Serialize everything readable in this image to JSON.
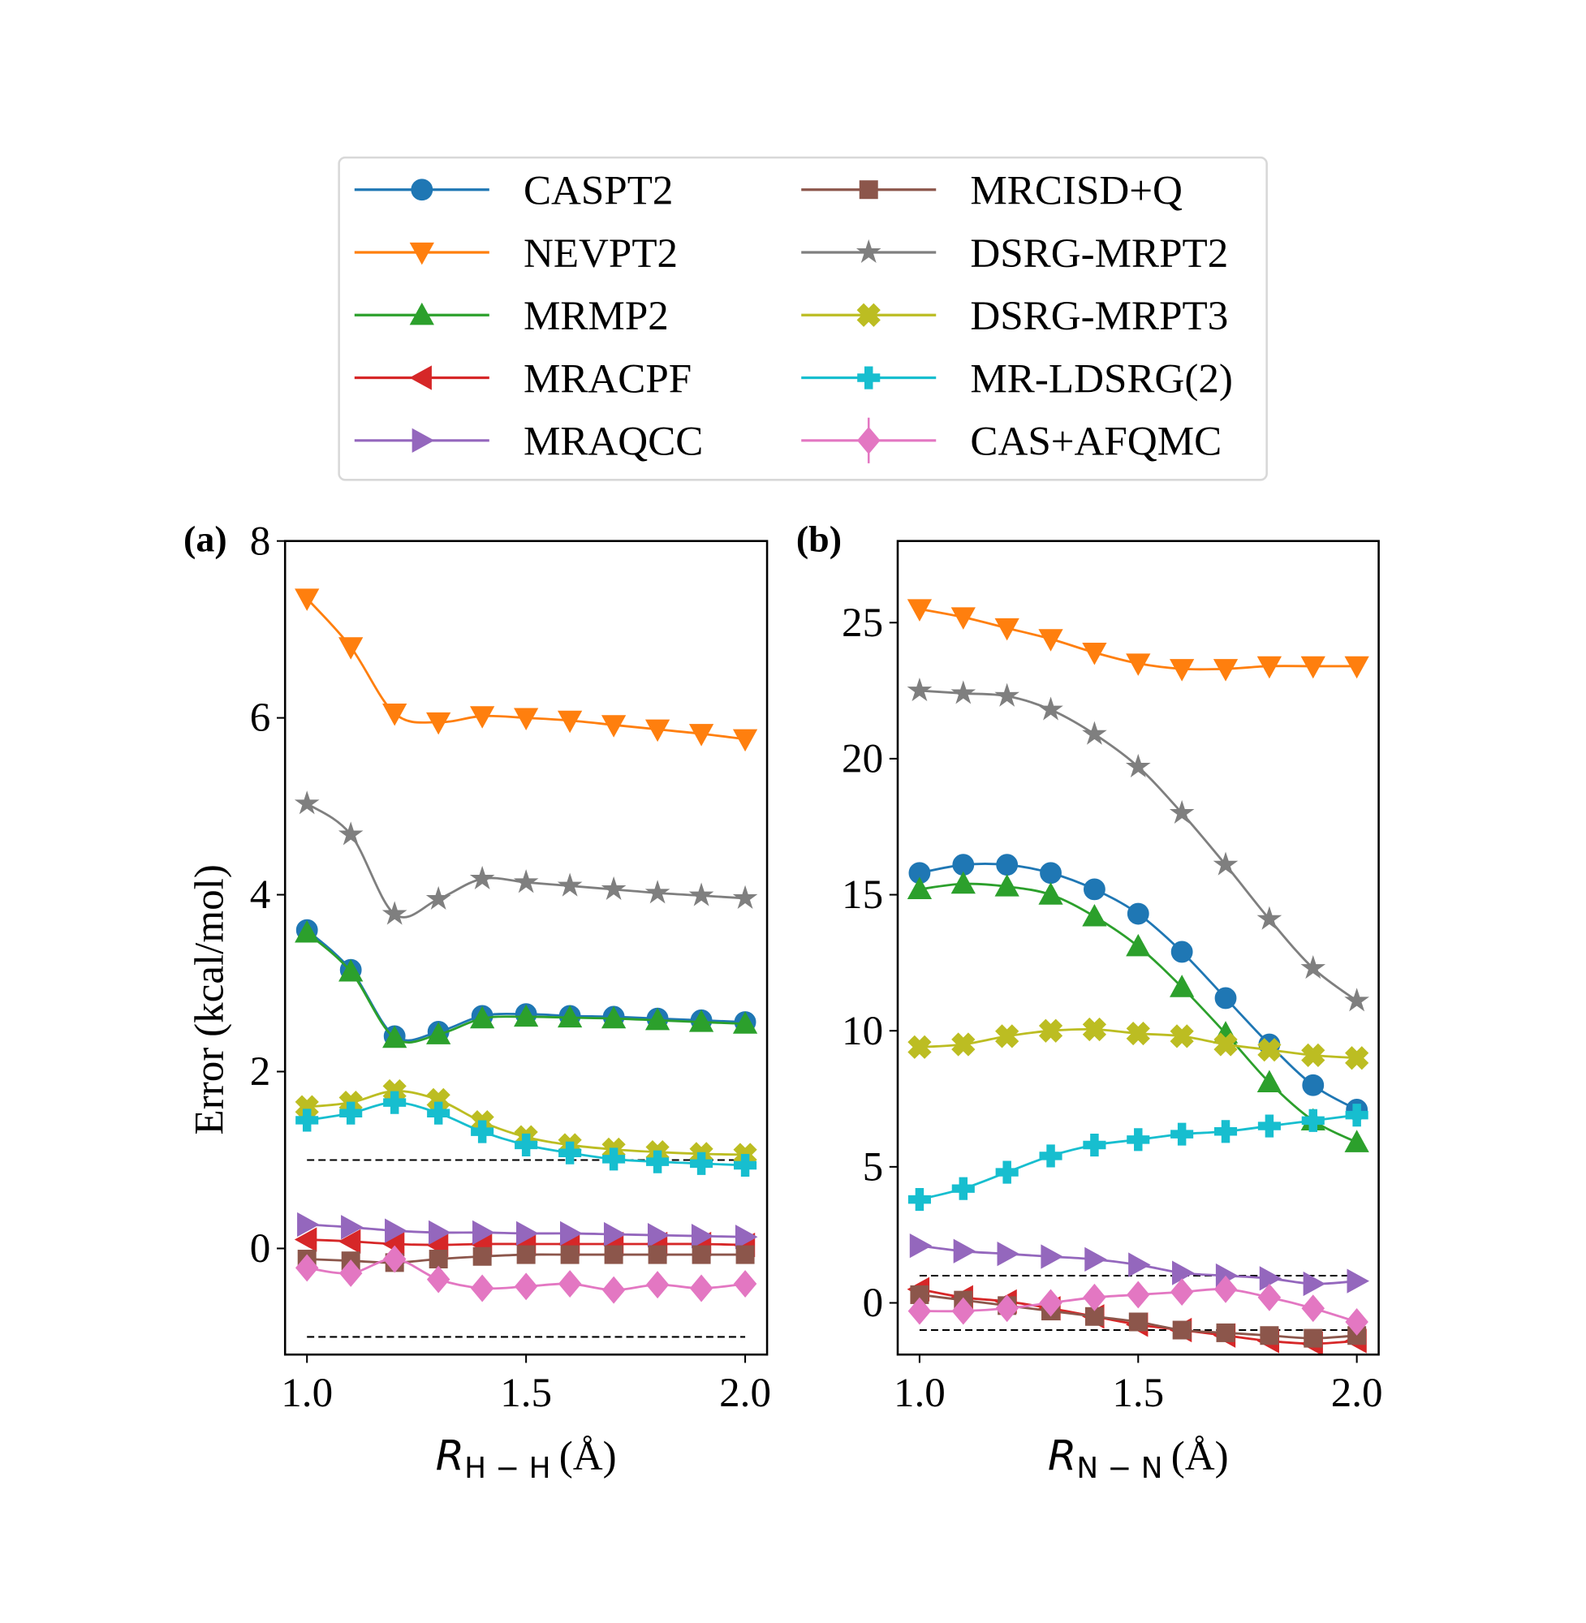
{
  "legend": {
    "location": "top-center",
    "entries": [
      {
        "name": "CASPT2",
        "color": "#1f77b4",
        "marker": "circle"
      },
      {
        "name": "NEVPT2",
        "color": "#ff7f0e",
        "marker": "triangle-down"
      },
      {
        "name": "MRMP2",
        "color": "#2ca02c",
        "marker": "triangle-up"
      },
      {
        "name": "MRACPF",
        "color": "#d62728",
        "marker": "triangle-left"
      },
      {
        "name": "MRAQCC",
        "color": "#9467bd",
        "marker": "triangle-right"
      },
      {
        "name": "MRCISD+Q",
        "color": "#8c564b",
        "marker": "square"
      },
      {
        "name": "DSRG-MRPT2",
        "color": "#7f7f7f",
        "marker": "star"
      },
      {
        "name": "DSRG-MRPT3",
        "color": "#bcbd22",
        "marker": "x-filled"
      },
      {
        "name": "MR-LDSRG(2)",
        "color": "#17becf",
        "marker": "plus-filled"
      },
      {
        "name": "CAS+AFQMC",
        "color": "#e377c2",
        "marker": "diamond-errorbar"
      }
    ]
  },
  "chart_data": [
    {
      "type": "line",
      "panel_label": "(a)",
      "xlabel_main": "R",
      "xlabel_sub": "H − H",
      "xlabel_unit": "(Å)",
      "ylabel": "Error (kcal/mol)",
      "xlim": [
        0.95,
        2.05
      ],
      "ylim": [
        -1.2,
        8
      ],
      "xticks": [
        "1.0",
        "1.5",
        "2.0"
      ],
      "xtick_values": [
        1.0,
        1.5,
        2.0
      ],
      "yticks": [
        "0",
        "2",
        "4",
        "6",
        "8"
      ],
      "ytick_values": [
        0,
        2,
        4,
        6,
        8
      ],
      "reference_lines": [
        1,
        -1
      ],
      "x": [
        1.0,
        1.1,
        1.2,
        1.3,
        1.4,
        1.5,
        1.6,
        1.7,
        1.8,
        1.9,
        2.0
      ],
      "series": [
        {
          "name": "CASPT2",
          "values": [
            3.6,
            3.15,
            2.4,
            2.45,
            2.63,
            2.65,
            2.63,
            2.62,
            2.6,
            2.58,
            2.56
          ]
        },
        {
          "name": "NEVPT2",
          "values": [
            7.35,
            6.8,
            6.05,
            5.95,
            6.02,
            6.0,
            5.97,
            5.92,
            5.87,
            5.82,
            5.76
          ]
        },
        {
          "name": "MRMP2",
          "values": [
            3.57,
            3.13,
            2.38,
            2.42,
            2.6,
            2.62,
            2.61,
            2.6,
            2.58,
            2.56,
            2.54
          ]
        },
        {
          "name": "MRACPF",
          "values": [
            0.1,
            0.08,
            0.05,
            0.04,
            0.05,
            0.05,
            0.05,
            0.05,
            0.05,
            0.05,
            0.04
          ]
        },
        {
          "name": "MRAQCC",
          "values": [
            0.27,
            0.24,
            0.2,
            0.18,
            0.18,
            0.17,
            0.17,
            0.16,
            0.15,
            0.14,
            0.13
          ]
        },
        {
          "name": "MRCISD+Q",
          "values": [
            -0.12,
            -0.14,
            -0.16,
            -0.12,
            -0.09,
            -0.07,
            -0.07,
            -0.07,
            -0.07,
            -0.07,
            -0.07
          ]
        },
        {
          "name": "DSRG-MRPT2",
          "values": [
            5.03,
            4.68,
            3.78,
            3.95,
            4.18,
            4.14,
            4.1,
            4.06,
            4.02,
            3.99,
            3.96
          ]
        },
        {
          "name": "DSRG-MRPT3",
          "values": [
            1.6,
            1.65,
            1.78,
            1.68,
            1.43,
            1.26,
            1.17,
            1.12,
            1.09,
            1.07,
            1.06
          ]
        },
        {
          "name": "MR-LDSRG(2)",
          "values": [
            1.45,
            1.53,
            1.65,
            1.53,
            1.32,
            1.17,
            1.08,
            1.01,
            0.98,
            0.96,
            0.94
          ]
        },
        {
          "name": "CAS+AFQMC",
          "values": [
            -0.22,
            -0.28,
            -0.12,
            -0.35,
            -0.45,
            -0.43,
            -0.4,
            -0.47,
            -0.41,
            -0.45,
            -0.4
          ]
        }
      ]
    },
    {
      "type": "line",
      "panel_label": "(b)",
      "xlabel_main": "R",
      "xlabel_sub": "N − N",
      "xlabel_unit": "(Å)",
      "ylabel": "",
      "xlim": [
        0.95,
        2.05
      ],
      "ylim": [
        -1.9,
        28
      ],
      "xticks": [
        "1.0",
        "1.5",
        "2.0"
      ],
      "xtick_values": [
        1.0,
        1.5,
        2.0
      ],
      "yticks": [
        "0",
        "5",
        "10",
        "15",
        "20",
        "25"
      ],
      "ytick_values": [
        0,
        5,
        10,
        15,
        20,
        25
      ],
      "reference_lines": [
        1,
        -1
      ],
      "x": [
        1.0,
        1.1,
        1.2,
        1.3,
        1.4,
        1.5,
        1.6,
        1.7,
        1.8,
        1.9,
        2.0
      ],
      "series": [
        {
          "name": "CASPT2",
          "values": [
            15.8,
            16.1,
            16.1,
            15.8,
            15.2,
            14.3,
            12.9,
            11.2,
            9.5,
            8.0,
            7.1
          ]
        },
        {
          "name": "NEVPT2",
          "values": [
            25.5,
            25.2,
            24.8,
            24.4,
            23.9,
            23.5,
            23.3,
            23.3,
            23.4,
            23.4,
            23.4
          ]
        },
        {
          "name": "MRMP2",
          "values": [
            15.2,
            15.4,
            15.3,
            15.0,
            14.2,
            13.1,
            11.6,
            9.9,
            8.1,
            6.7,
            5.9
          ]
        },
        {
          "name": "MRACPF",
          "values": [
            0.5,
            0.2,
            0.05,
            -0.2,
            -0.5,
            -0.8,
            -1.0,
            -1.2,
            -1.4,
            -1.5,
            -1.4
          ]
        },
        {
          "name": "MRAQCC",
          "values": [
            2.1,
            1.9,
            1.8,
            1.7,
            1.6,
            1.4,
            1.1,
            1.0,
            0.9,
            0.7,
            0.8
          ]
        },
        {
          "name": "MRCISD+Q",
          "values": [
            0.3,
            0.1,
            -0.1,
            -0.3,
            -0.5,
            -0.7,
            -1.0,
            -1.1,
            -1.2,
            -1.3,
            -1.2
          ]
        },
        {
          "name": "DSRG-MRPT2",
          "values": [
            22.5,
            22.4,
            22.3,
            21.8,
            20.9,
            19.7,
            18.0,
            16.1,
            14.1,
            12.3,
            11.1
          ]
        },
        {
          "name": "DSRG-MRPT3",
          "values": [
            9.4,
            9.5,
            9.8,
            10.0,
            10.05,
            9.9,
            9.8,
            9.5,
            9.3,
            9.1,
            9.0
          ]
        },
        {
          "name": "MR-LDSRG(2)",
          "values": [
            3.8,
            4.2,
            4.8,
            5.4,
            5.8,
            6.0,
            6.2,
            6.3,
            6.5,
            6.7,
            6.9
          ]
        },
        {
          "name": "CAS+AFQMC",
          "values": [
            -0.3,
            -0.3,
            -0.2,
            0.0,
            0.2,
            0.3,
            0.4,
            0.5,
            0.2,
            -0.2,
            -0.7
          ]
        }
      ]
    }
  ]
}
